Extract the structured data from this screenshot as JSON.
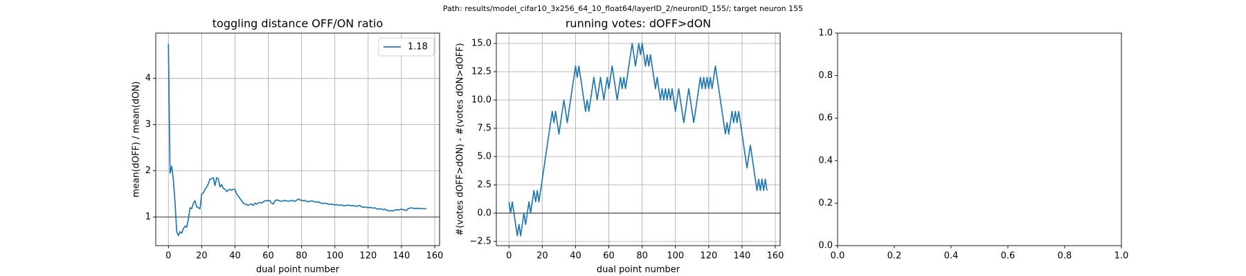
{
  "suptitle": "Path: results/model_cifar10_3x256_64_10_float64/layerID_2/neuronID_155/; target neuron 155",
  "chart_data": [
    {
      "type": "line",
      "title": "toggling distance OFF/ON ratio",
      "xlabel": "dual point number",
      "ylabel": "mean(dOFF) / mean(dON)",
      "x": [
        0,
        1,
        2,
        3,
        4,
        5,
        6,
        7,
        8,
        9,
        10,
        11,
        12,
        13,
        14,
        15,
        16,
        17,
        18,
        19,
        20,
        21,
        22,
        23,
        24,
        25,
        26,
        27,
        28,
        29,
        30,
        31,
        32,
        33,
        34,
        35,
        36,
        37,
        38,
        39,
        40,
        41,
        42,
        43,
        44,
        45,
        46,
        47,
        48,
        49,
        50,
        51,
        52,
        53,
        54,
        55,
        56,
        57,
        58,
        59,
        60,
        61,
        62,
        63,
        64,
        65,
        66,
        67,
        68,
        69,
        70,
        71,
        72,
        73,
        74,
        75,
        76,
        77,
        78,
        79,
        80,
        81,
        82,
        83,
        84,
        85,
        86,
        87,
        88,
        89,
        90,
        91,
        92,
        93,
        94,
        95,
        96,
        97,
        98,
        99,
        100,
        101,
        102,
        103,
        104,
        105,
        106,
        107,
        108,
        109,
        110,
        111,
        112,
        113,
        114,
        115,
        116,
        117,
        118,
        119,
        120,
        121,
        122,
        123,
        124,
        125,
        126,
        127,
        128,
        129,
        130,
        131,
        132,
        133,
        134,
        135,
        136,
        137,
        138,
        139,
        140,
        141,
        142,
        143,
        144,
        145,
        146,
        147,
        148,
        149,
        150,
        151,
        152,
        153,
        154,
        155
      ],
      "series": [
        {
          "name": "1.18",
          "color": "#1f77b4",
          "values": [
            4.75,
            1.95,
            2.1,
            1.8,
            1.3,
            0.68,
            0.6,
            0.68,
            0.65,
            0.75,
            0.8,
            0.78,
            0.95,
            1.2,
            1.18,
            1.3,
            1.35,
            1.22,
            1.2,
            1.18,
            1.5,
            1.52,
            1.6,
            1.65,
            1.72,
            1.82,
            1.83,
            1.85,
            1.68,
            1.85,
            1.82,
            1.65,
            1.7,
            1.62,
            1.6,
            1.55,
            1.58,
            1.6,
            1.58,
            1.6,
            1.6,
            1.5,
            1.45,
            1.4,
            1.35,
            1.3,
            1.28,
            1.27,
            1.25,
            1.27,
            1.28,
            1.25,
            1.3,
            1.28,
            1.3,
            1.32,
            1.3,
            1.33,
            1.35,
            1.35,
            1.36,
            1.35,
            1.3,
            1.28,
            1.35,
            1.37,
            1.36,
            1.35,
            1.34,
            1.35,
            1.36,
            1.35,
            1.34,
            1.35,
            1.36,
            1.35,
            1.34,
            1.36,
            1.39,
            1.37,
            1.36,
            1.35,
            1.36,
            1.34,
            1.33,
            1.34,
            1.35,
            1.34,
            1.33,
            1.32,
            1.33,
            1.31,
            1.3,
            1.29,
            1.3,
            1.29,
            1.28,
            1.27,
            1.28,
            1.27,
            1.26,
            1.27,
            1.26,
            1.25,
            1.26,
            1.25,
            1.24,
            1.25,
            1.26,
            1.25,
            1.24,
            1.25,
            1.24,
            1.23,
            1.24,
            1.25,
            1.22,
            1.21,
            1.22,
            1.21,
            1.2,
            1.21,
            1.2,
            1.19,
            1.2,
            1.18,
            1.17,
            1.18,
            1.17,
            1.16,
            1.17,
            1.15,
            1.14,
            1.13,
            1.14,
            1.13,
            1.15,
            1.16,
            1.15,
            1.16,
            1.17,
            1.16,
            1.15,
            1.14,
            1.18,
            1.19,
            1.2,
            1.19,
            1.18,
            1.19,
            1.18,
            1.19,
            1.18,
            1.18,
            1.18,
            1.18
          ]
        }
      ],
      "hline": 1,
      "hline_color": "#555555",
      "xlim": [
        -7.6,
        162.9
      ],
      "ylim": [
        0.38,
        4.98
      ],
      "xticks": [
        0,
        20,
        40,
        60,
        80,
        100,
        120,
        140,
        160
      ],
      "yticks": [
        1,
        2,
        3,
        4
      ],
      "grid": true,
      "legend": "upper right"
    },
    {
      "type": "line",
      "title": "running votes: dOFF>dON",
      "xlabel": "dual point number",
      "ylabel": "#(votes dOFF>dON) - #(votes dON>dOFF)",
      "x": [
        0,
        1,
        2,
        3,
        4,
        5,
        6,
        7,
        8,
        9,
        10,
        11,
        12,
        13,
        14,
        15,
        16,
        17,
        18,
        19,
        20,
        21,
        22,
        23,
        24,
        25,
        26,
        27,
        28,
        29,
        30,
        31,
        32,
        33,
        34,
        35,
        36,
        37,
        38,
        39,
        40,
        41,
        42,
        43,
        44,
        45,
        46,
        47,
        48,
        49,
        50,
        51,
        52,
        53,
        54,
        55,
        56,
        57,
        58,
        59,
        60,
        61,
        62,
        63,
        64,
        65,
        66,
        67,
        68,
        69,
        70,
        71,
        72,
        73,
        74,
        75,
        76,
        77,
        78,
        79,
        80,
        81,
        82,
        83,
        84,
        85,
        86,
        87,
        88,
        89,
        90,
        91,
        92,
        93,
        94,
        95,
        96,
        97,
        98,
        99,
        100,
        101,
        102,
        103,
        104,
        105,
        106,
        107,
        108,
        109,
        110,
        111,
        112,
        113,
        114,
        115,
        116,
        117,
        118,
        119,
        120,
        121,
        122,
        123,
        124,
        125,
        126,
        127,
        128,
        129,
        130,
        131,
        132,
        133,
        134,
        135,
        136,
        137,
        138,
        139,
        140,
        141,
        142,
        143,
        144,
        145,
        146,
        147,
        148,
        149,
        150,
        151,
        152,
        153,
        154,
        155
      ],
      "series": [
        {
          "color": "#1f77b4",
          "values": [
            1,
            0,
            1,
            0,
            -1,
            -2,
            -1,
            -2,
            -1,
            0,
            -1,
            0,
            1,
            0,
            1,
            2,
            1,
            2,
            1,
            2,
            3,
            4,
            5,
            6,
            7,
            8,
            9,
            8,
            9,
            8,
            7,
            8,
            9,
            10,
            9,
            8,
            9,
            10,
            11,
            12,
            13,
            12,
            13,
            12,
            11,
            10,
            9,
            10,
            9,
            10,
            11,
            12,
            11,
            10,
            11,
            12,
            11,
            10,
            11,
            12,
            11,
            12,
            13,
            12,
            11,
            10,
            11,
            12,
            11,
            12,
            11,
            12,
            13,
            14,
            15,
            14,
            13,
            14,
            15,
            14,
            15,
            14,
            13,
            14,
            13,
            14,
            13,
            12,
            11,
            12,
            11,
            10,
            11,
            10,
            11,
            10,
            11,
            10,
            11,
            10,
            9,
            10,
            11,
            10,
            9,
            8,
            9,
            10,
            11,
            10,
            9,
            8,
            9,
            10,
            11,
            12,
            11,
            12,
            11,
            12,
            11,
            12,
            11,
            12,
            13,
            12,
            11,
            10,
            9,
            8,
            7,
            8,
            7,
            8,
            9,
            8,
            9,
            8,
            9,
            8,
            7,
            6,
            5,
            4,
            5,
            6,
            5,
            4,
            3,
            2,
            3,
            2,
            3,
            2,
            3,
            2
          ]
        }
      ],
      "hline": 0,
      "hline_color": "#555555",
      "xlim": [
        -7.6,
        162.9
      ],
      "ylim": [
        -2.87,
        15.91
      ],
      "xticks": [
        0,
        20,
        40,
        60,
        80,
        100,
        120,
        140,
        160
      ],
      "yticks": [
        {
          "value": -2.5,
          "label": "−2.5"
        },
        {
          "value": 0,
          "label": "0.0"
        },
        2.5,
        {
          "value": 5,
          "label": "5.0"
        },
        7.5,
        {
          "value": 10,
          "label": "10.0"
        },
        12.5,
        {
          "value": 15,
          "label": "15.0"
        }
      ],
      "grid": true
    },
    {
      "type": "empty",
      "xlim": [
        0,
        1
      ],
      "ylim": [
        0,
        1
      ],
      "xticks": [
        {
          "value": 0,
          "label": "0.0"
        },
        {
          "value": 0.2,
          "label": "0.2"
        },
        {
          "value": 0.4,
          "label": "0.4"
        },
        {
          "value": 0.6,
          "label": "0.6"
        },
        {
          "value": 0.8,
          "label": "0.8"
        },
        {
          "value": 1,
          "label": "1.0"
        }
      ],
      "yticks": [
        {
          "value": 0,
          "label": "0.0"
        },
        {
          "value": 0.2,
          "label": "0.2"
        },
        {
          "value": 0.4,
          "label": "0.4"
        },
        {
          "value": 0.6,
          "label": "0.6"
        },
        {
          "value": 0.8,
          "label": "0.8"
        },
        {
          "value": 1,
          "label": "1.0"
        }
      ],
      "grid": false
    }
  ]
}
